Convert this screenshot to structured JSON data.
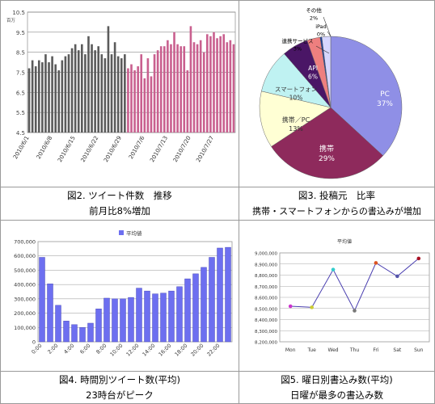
{
  "colors": {
    "dark_bar": "#5b5b5b",
    "pink_bar": "#c9608f",
    "blue_bar": "#6d6ff0",
    "line": "#4a3fb0",
    "pie_pc": "#8f8fe6",
    "pie_keitai": "#8e2a5c",
    "pie_keitaipc": "#ffffd4",
    "pie_sp": "#bff2f2",
    "pie_api": "#4a1666",
    "pie_ren": "#ee7f7f",
    "pie_ipad": "#1c3f9a",
    "pie_other": "#d6d6ff"
  },
  "captions": {
    "c1_line1": "図2. ツイート件数　推移",
    "c1_line2": "前月比8%増加",
    "c2_line1": "図3. 投稿元　比率",
    "c2_line2": "携帯・スマートフォンからの書込みが増加",
    "c3_line1": "図4. 時間別ツイート数(平均)",
    "c3_line2": "23時台がピーク",
    "c4_line1": "図5. 曜日別書込み数(平均)",
    "c4_line2": "日曜が最多の書込み数"
  },
  "chart_data": [
    {
      "type": "bar",
      "unit_label": "百万",
      "ylim": [
        4.5,
        10.5
      ],
      "yticks": [
        "4.5",
        "5.5",
        "6.5",
        "7.5",
        "8.5",
        "9.5",
        "10.5"
      ],
      "xtick_labels": [
        "2010/6/1",
        "2010/6/8",
        "2010/6/15",
        "2010/6/22",
        "2010/6/29",
        "2010/7/6",
        "2010/7/13",
        "2010/7/20",
        "2010/7/27"
      ],
      "xtick_indices": [
        0,
        7,
        14,
        21,
        28,
        35,
        42,
        49,
        56
      ],
      "series": [
        {
          "values": [
            7.7,
            8.1,
            7.8,
            8.1,
            8.0,
            8.4,
            8.0,
            8.3,
            7.9,
            7.6,
            8.1,
            8.3,
            8.4,
            8.7,
            8.9,
            8.6,
            8.9,
            8.4,
            9.3,
            8.9,
            8.6,
            8.8,
            8.4,
            8.2,
            9.8,
            8.4,
            9.0,
            8.3,
            8.2,
            8.4
          ]
        },
        {
          "values": [
            7.7,
            7.9,
            7.6,
            7.8,
            8.4,
            7.2,
            8.2,
            7.3,
            8.4,
            8.6,
            8.8,
            8.8,
            9.1,
            8.9,
            9.5,
            8.9,
            8.8,
            8.8,
            7.6,
            9.8,
            9.0,
            8.9,
            9.1,
            8.5,
            9.4,
            9.3,
            9.5,
            9.2,
            9.3,
            9.4,
            9.0,
            9.1,
            8.9
          ]
        }
      ]
    },
    {
      "type": "pie",
      "slices": [
        {
          "label": "PC",
          "pct": "37%",
          "value": 37
        },
        {
          "label": "携帯",
          "pct": "29%",
          "value": 29
        },
        {
          "label": "携帯／PC",
          "pct": "13%",
          "value": 13
        },
        {
          "label": "スマートフォン",
          "pct": "10%",
          "value": 10
        },
        {
          "label": "API",
          "pct": "6%",
          "value": 6
        },
        {
          "label": "連携サービス",
          "pct": "3%",
          "value": 3
        },
        {
          "label": "iPad",
          "pct": "0%",
          "value": 0.4
        },
        {
          "label": "その他",
          "pct": "2%",
          "value": 2
        }
      ]
    },
    {
      "type": "bar",
      "legend": "平均値",
      "ylim": [
        0,
        700000
      ],
      "yticks": [
        "0",
        "100,000",
        "200,000",
        "300,000",
        "400,000",
        "500,000",
        "600,000",
        "700,000"
      ],
      "xtick_labels": [
        "0:00",
        "2:00",
        "4:00",
        "6:00",
        "8:00",
        "10:00",
        "12:00",
        "14:00",
        "16:00",
        "18:00",
        "20:00",
        "22:00"
      ],
      "values": [
        590000,
        405000,
        255000,
        145000,
        120000,
        100000,
        130000,
        230000,
        305000,
        300000,
        300000,
        310000,
        375000,
        355000,
        335000,
        340000,
        355000,
        385000,
        440000,
        475000,
        520000,
        590000,
        655000,
        660000
      ]
    },
    {
      "type": "line",
      "title": "平均値",
      "categories": [
        "Mon",
        "Tue",
        "Wed",
        "Thu",
        "Fri",
        "Sat",
        "Sun"
      ],
      "values": [
        8520000,
        8510000,
        8850000,
        8480000,
        8910000,
        8790000,
        8950000
      ],
      "point_colors": [
        "#cc33cc",
        "#cccc33",
        "#33cccc",
        "#777777",
        "#dd5522",
        "#5555aa",
        "#aa1122"
      ],
      "ylim": [
        8200000,
        9000000
      ],
      "yticks": [
        "8,200,000",
        "8,300,000",
        "8,400,000",
        "8,500,000",
        "8,600,000",
        "8,700,000",
        "8,800,000",
        "8,900,000",
        "9,000,000"
      ]
    }
  ]
}
